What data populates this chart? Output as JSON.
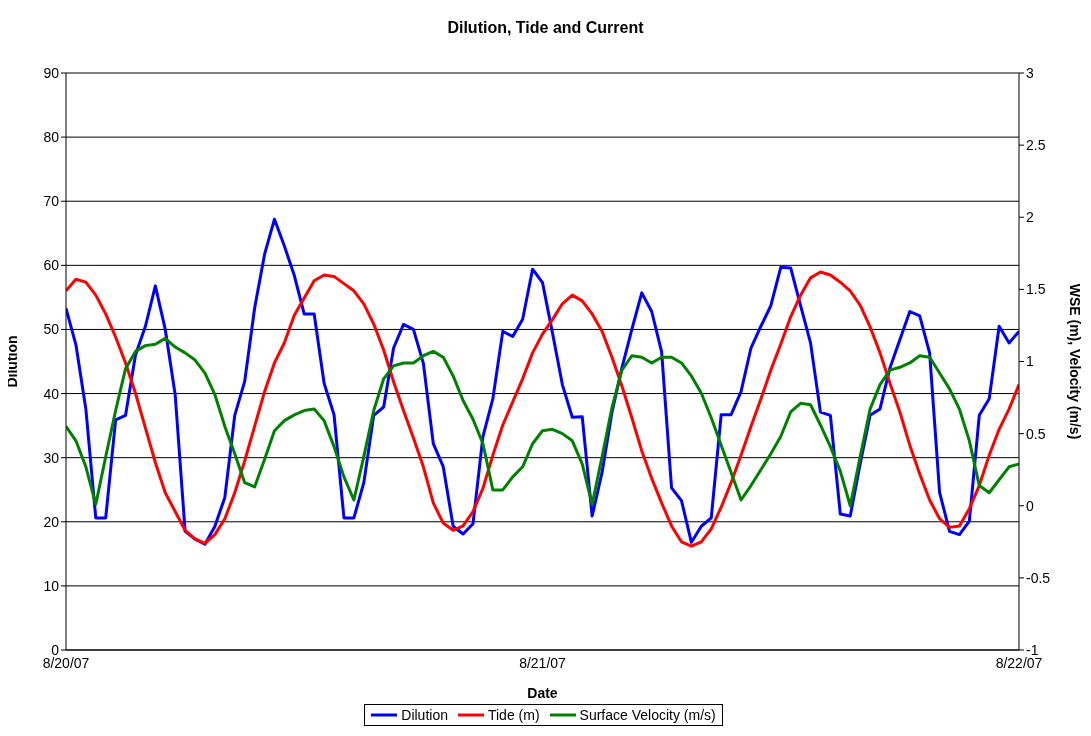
{
  "chart_data": {
    "type": "line",
    "title": "Dilution, Tide and Current",
    "xlabel": "Date",
    "ylabel": "Dilution",
    "y2label": "WSE (m), Velocity (m/s)",
    "x": [
      "--08-20T00:00",
      "--08-20T00:30",
      "--08-20T01:00",
      "--08-20T01:30",
      "--08-20T02:00",
      "--08-20T02:30",
      "--08-20T03:00",
      "--08-20T03:30",
      "--08-20T04:00",
      "--08-20T04:30",
      "--08-20T05:00",
      "--08-20T05:30",
      "--08-20T06:00",
      "--08-20T06:30",
      "--08-20T07:00",
      "--08-20T07:30",
      "--08-20T08:00",
      "--08-20T08:30",
      "--08-20T09:00",
      "--08-20T09:30",
      "--08-20T10:00",
      "--08-20T10:30",
      "--08-20T11:00",
      "--08-20T11:30",
      "--08-20T12:00",
      "--08-20T12:30",
      "--08-20T13:00",
      "--08-20T13:30",
      "--08-20T14:00",
      "--08-20T14:30",
      "--08-20T15:00",
      "--08-20T15:30",
      "--08-20T16:00",
      "--08-20T16:30",
      "--08-20T17:00",
      "--08-20T17:30",
      "--08-20T18:00",
      "--08-20T18:30",
      "--08-20T19:00",
      "--08-20T19:30",
      "--08-20T20:00",
      "--08-20T20:30",
      "--08-20T21:00",
      "--08-20T21:30",
      "--08-20T22:00",
      "--08-20T22:30",
      "--08-20T23:00",
      "--08-20T23:30",
      "--08-21T00:00",
      "--08-21T00:30",
      "--08-21T01:00",
      "--08-21T01:30",
      "--08-21T02:00",
      "--08-21T02:30",
      "--08-21T03:00",
      "--08-21T03:30",
      "--08-21T04:00",
      "--08-21T04:30",
      "--08-21T05:00",
      "--08-21T05:30",
      "--08-21T06:00",
      "--08-21T06:30",
      "--08-21T07:00",
      "--08-21T07:30",
      "--08-21T08:00",
      "--08-21T08:30",
      "--08-21T09:00",
      "--08-21T09:30",
      "--08-21T10:00",
      "--08-21T10:30",
      "--08-21T11:00",
      "--08-21T11:30",
      "--08-21T12:00",
      "--08-21T12:30",
      "--08-21T13:00",
      "--08-21T13:30",
      "--08-21T14:00",
      "--08-21T14:30",
      "--08-21T15:00",
      "--08-21T15:30",
      "--08-21T16:00",
      "--08-21T16:30",
      "--08-21T17:00",
      "--08-21T17:30",
      "--08-21T18:00",
      "--08-21T18:30",
      "--08-21T19:00",
      "--08-21T19:30",
      "--08-21T20:00",
      "--08-21T20:30",
      "--08-21T21:00",
      "--08-21T21:30",
      "--08-21T22:00",
      "--08-21T22:30",
      "--08-21T23:00",
      "--08-21T23:30",
      "--08-22T00:00"
    ],
    "xlim": [
      "--08-20",
      "--08-22"
    ],
    "xticks": [
      {
        "value": "--08-20",
        "label": "8/20/07"
      },
      {
        "value": "--08-21",
        "label": "8/21/07"
      },
      {
        "value": "--08-22",
        "label": "8/22/07"
      }
    ],
    "ylim": [
      0,
      90
    ],
    "yticks": [
      0,
      10,
      20,
      30,
      40,
      50,
      60,
      70,
      80,
      90
    ],
    "y2lim": [
      -1,
      3
    ],
    "y2ticks": [
      -1,
      -0.5,
      0,
      0.5,
      1,
      1.5,
      2,
      2.5,
      3
    ],
    "grid": "y",
    "legend": "bottom",
    "marker": "none",
    "line_style": "solid",
    "series": [
      {
        "name": "Dilution",
        "color": "#0000ff",
        "values": [
          53.3,
          47.6,
          37.6,
          20.6,
          20.6,
          35.9,
          36.6,
          46,
          50.5,
          56.8,
          50,
          39.8,
          18.5,
          17.3,
          16.5,
          19.3,
          23.8,
          36.6,
          41.9,
          53.3,
          61.7,
          67.2,
          63,
          58.4,
          52.4,
          52.4,
          41.6,
          36.7,
          20.6,
          20.6,
          26.1,
          36.6,
          37.9,
          47.1,
          50.8,
          50,
          44.7,
          32.2,
          28.6,
          19.3,
          18.1,
          19.7,
          33.3,
          39.2,
          49.7,
          48.9,
          51.6,
          59.4,
          57.3,
          49.5,
          41.4,
          36.3,
          36.4,
          20.9,
          27.7,
          37.1,
          44,
          50,
          55.7,
          52.8,
          46.5,
          25.3,
          23.3,
          16.8,
          19.3,
          20.6,
          36.7,
          36.7,
          40.3,
          47.1,
          50.5,
          53.7,
          59.7,
          59.6,
          53.7,
          47.9,
          37.1,
          36.6,
          21.2,
          20.9,
          29,
          36.6,
          37.6,
          44,
          48.4,
          52.8,
          52.1,
          46.3,
          24.6,
          18.5,
          18,
          20.1,
          36.6,
          39.2,
          50.5,
          47.9,
          49.7
        ]
      },
      {
        "name": "Tide (m)",
        "color": "#ff0000",
        "axis": "y2",
        "values": [
          1.49,
          1.57,
          1.55,
          1.46,
          1.33,
          1.17,
          0.99,
          0.78,
          0.54,
          0.3,
          0.09,
          -0.04,
          -0.17,
          -0.23,
          -0.26,
          -0.2,
          -0.09,
          0.09,
          0.31,
          0.55,
          0.79,
          0.99,
          1.13,
          1.32,
          1.44,
          1.56,
          1.6,
          1.59,
          1.54,
          1.49,
          1.4,
          1.26,
          1.08,
          0.86,
          0.66,
          0.47,
          0.27,
          0.02,
          -0.12,
          -0.17,
          -0.14,
          -0.04,
          0.12,
          0.35,
          0.56,
          0.72,
          0.88,
          1.06,
          1.19,
          1.29,
          1.4,
          1.46,
          1.42,
          1.33,
          1.21,
          1.03,
          0.83,
          0.61,
          0.38,
          0.19,
          0.02,
          -0.14,
          -0.25,
          -0.28,
          -0.25,
          -0.16,
          -0.01,
          0.16,
          0.35,
          0.55,
          0.74,
          0.94,
          1.12,
          1.31,
          1.46,
          1.58,
          1.62,
          1.6,
          1.55,
          1.49,
          1.39,
          1.24,
          1.06,
          0.85,
          0.65,
          0.42,
          0.22,
          0.04,
          -0.09,
          -0.15,
          -0.14,
          -0.02,
          0.14,
          0.35,
          0.53,
          0.67,
          0.84
        ]
      },
      {
        "name": "Surface Velocity (m/s)",
        "color": "#008000",
        "axis": "y2",
        "values": [
          0.55,
          0.45,
          0.27,
          0.01,
          0.34,
          0.66,
          0.95,
          1.07,
          1.11,
          1.12,
          1.16,
          1.1,
          1.06,
          1.01,
          0.92,
          0.77,
          0.55,
          0.36,
          0.16,
          0.13,
          0.32,
          0.52,
          0.59,
          0.63,
          0.66,
          0.67,
          0.59,
          0.41,
          0.2,
          0.04,
          0.34,
          0.66,
          0.88,
          0.97,
          0.99,
          0.99,
          1.04,
          1.07,
          1.03,
          0.9,
          0.73,
          0.6,
          0.43,
          0.11,
          0.11,
          0.2,
          0.27,
          0.43,
          0.52,
          0.53,
          0.5,
          0.45,
          0.29,
          0.01,
          0.34,
          0.68,
          0.94,
          1.04,
          1.03,
          0.99,
          1.03,
          1.03,
          0.99,
          0.9,
          0.78,
          0.61,
          0.42,
          0.23,
          0.04,
          0.14,
          0.25,
          0.36,
          0.48,
          0.65,
          0.71,
          0.7,
          0.56,
          0.41,
          0.24,
          0,
          0.34,
          0.67,
          0.84,
          0.94,
          0.96,
          0.99,
          1.04,
          1.03,
          0.92,
          0.81,
          0.67,
          0.45,
          0.14,
          0.09,
          0.18,
          0.27,
          0.29
        ]
      }
    ]
  }
}
